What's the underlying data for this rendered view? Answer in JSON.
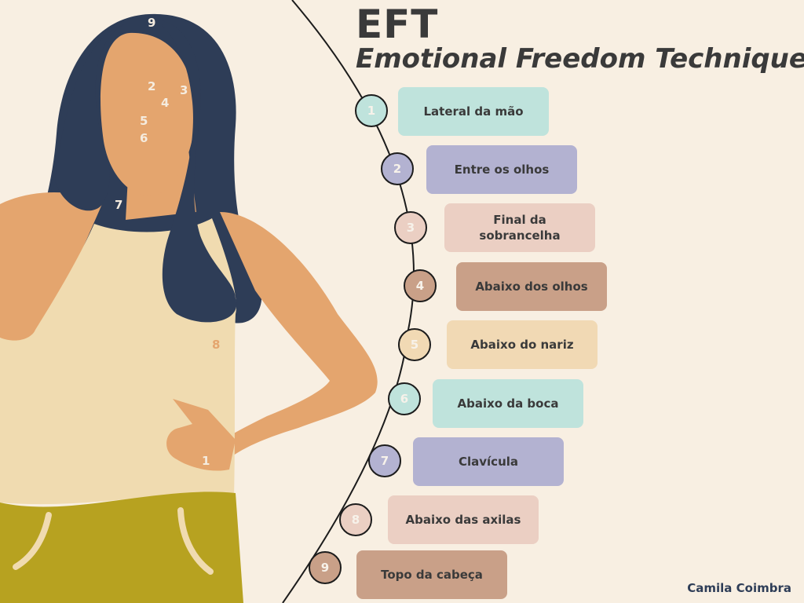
{
  "title": "EFT",
  "subtitle": "Emotional Freedom Technique",
  "author": "Camila Coimbra",
  "colors": {
    "background": "#f8efe2",
    "hair": "#2e3d57",
    "skin": "#e4a56e",
    "top": "#f0dbb0",
    "pants": "#b7a220",
    "mint": "#bfe3dc",
    "lavender": "#b3b2d1",
    "blush": "#ebcfc3",
    "tan": "#c9a088",
    "sand": "#f1d9b4"
  },
  "steps": [
    {
      "number": "1",
      "label": "Lateral da mão",
      "color": "#bfe3dc"
    },
    {
      "number": "2",
      "label": "Entre os olhos",
      "color": "#b3b2d1"
    },
    {
      "number": "3",
      "label": "Final da sobrancelha",
      "color": "#ebcfc3"
    },
    {
      "number": "4",
      "label": "Abaixo dos olhos",
      "color": "#c9a088"
    },
    {
      "number": "5",
      "label": "Abaixo do nariz",
      "color": "#f1d9b4"
    },
    {
      "number": "6",
      "label": "Abaixo da boca",
      "color": "#bfe3dc"
    },
    {
      "number": "7",
      "label": "Clavícula",
      "color": "#b3b2d1"
    },
    {
      "number": "8",
      "label": "Abaixo das axilas",
      "color": "#ebcfc3"
    },
    {
      "number": "9",
      "label": "Topo da cabeça",
      "color": "#c9a088"
    }
  ],
  "body_points": [
    "9",
    "2",
    "3",
    "4",
    "5",
    "6",
    "7",
    "8",
    "1"
  ]
}
